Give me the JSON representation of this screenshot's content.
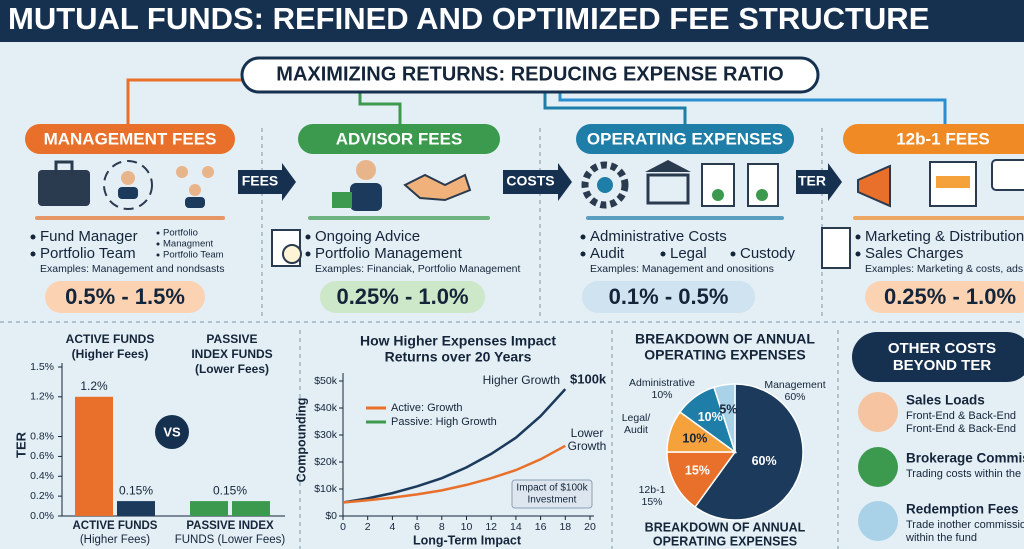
{
  "header": {
    "title": "MUTUAL FUNDS: REFINED AND OPTIMIZED FEE STRUCTURE",
    "subtitle": "MAXIMIZING RETURNS: REDUCING EXPENSE RATIO"
  },
  "fee_sections": [
    {
      "title": "MANAGEMENT FEES",
      "bullets": [
        "Fund Manager",
        "Portfolio Team"
      ],
      "notes": [
        "Portfolio",
        "Managment",
        "Portfolio Team"
      ],
      "examples": "Examples: Management and nondsasts",
      "range": "0.5% - 1.5%"
    },
    {
      "title": "ADVISOR FEES",
      "bullets": [
        "Ongoing Advice",
        "Portfolio Management"
      ],
      "examples": "Examples: Financiak, Portfolio Management",
      "range": "0.25% - 1.0%"
    },
    {
      "title": "OPERATING EXPENSES",
      "bullets": [
        "Administrative Costs",
        "Audit",
        "Legal",
        "Custody"
      ],
      "examples": "Examples: Management and onositions",
      "range": "0.1% - 0.5%"
    },
    {
      "title": "12b-1 FEES",
      "bullets": [
        "Marketing & Distribution",
        "Sales Charges"
      ],
      "examples": "Examples: Marketing & costs, ads, brokers",
      "range": "0.25% - 1.0%"
    }
  ],
  "flow_labels": [
    "FEES",
    "COSTS",
    "TER"
  ],
  "other_costs": {
    "title": [
      "OTHER COSTS",
      "BEYOND TER"
    ],
    "items": [
      {
        "name": "Sales Loads",
        "lines": [
          "Front-End & Back-End",
          "Front-End & Back-End"
        ]
      },
      {
        "name": "Brokerage Commissions",
        "lines": [
          "Trading costs within the fund"
        ]
      },
      {
        "name": "Redemption Fees",
        "lines": [
          "Trade inother commissions",
          "within the fund"
        ]
      }
    ]
  },
  "chart_data": [
    {
      "type": "bar",
      "headers": [
        [
          "ACTIVE FUNDS",
          "(Higher Fees)"
        ],
        [
          "PASSIVE",
          "INDEX FUNDS",
          "(Lower Fees)"
        ]
      ],
      "categories": [
        [
          "ACTIVE FUNDS",
          "(Higher Fees)"
        ],
        [
          "PASSIVE INDEX",
          "FUNDS (Lower Fees)"
        ]
      ],
      "ylabel": "TER",
      "separator": "VS",
      "series": [
        {
          "colors": [
            "#e8702a",
            "#3c9a4e"
          ],
          "values": [
            1.2,
            0.15
          ],
          "value_labels": [
            "1.2%",
            "0.15%"
          ]
        },
        {
          "colors": [
            "#1b3a5c",
            "#3c9a4e"
          ],
          "values": [
            0.15,
            0.15
          ],
          "value_labels": [
            "0.15%",
            null
          ]
        }
      ],
      "ylim": [
        0,
        1.5
      ],
      "yticks": [
        {
          "value": 0,
          "label": "0.0%"
        },
        {
          "value": 0.2,
          "label": "0.2%"
        },
        {
          "value": 0.4,
          "label": "0.4%"
        },
        {
          "value": 0.6,
          "label": "0.6%"
        },
        {
          "value": 0.8,
          "label": "0.8%"
        },
        {
          "value": 1.2,
          "label": "1.2%"
        },
        {
          "value": 1.5,
          "label": "1.5%"
        }
      ]
    },
    {
      "type": "line",
      "title": [
        "How Higher Expenses Impact",
        "Returns over 20 Years"
      ],
      "xlabel": "Long-Term Impact",
      "ylabel": "Compounding",
      "x": [
        0,
        2,
        4,
        6,
        8,
        10,
        12,
        14,
        16,
        18
      ],
      "series": [
        {
          "color": "#1b3a5c",
          "values": [
            5000,
            6500,
            8500,
            11000,
            14000,
            18000,
            23000,
            29000,
            37000,
            47000
          ]
        },
        {
          "name": "Active: Growth",
          "color": "#e8702a",
          "values": [
            5000,
            5800,
            6800,
            8000,
            9500,
            11500,
            14000,
            17000,
            21000,
            26000
          ]
        },
        {
          "name": "Passive: High Growth",
          "color": "#3c9a4e",
          "values": [
            null,
            null,
            null,
            null,
            null,
            null,
            null,
            null,
            null,
            null
          ]
        }
      ],
      "annotations": {
        "high": "Higher Growth",
        "high_value": "$100k",
        "low": [
          "Lower",
          "Growth"
        ],
        "note": [
          "Impact of $100k",
          "Investment"
        ]
      },
      "xlim": [
        0,
        20
      ],
      "xticks": [
        0,
        2,
        4,
        6,
        8,
        10,
        12,
        14,
        16,
        18,
        20
      ],
      "ylim": [
        0,
        50000
      ],
      "yticks": [
        {
          "value": 0,
          "label": "$0"
        },
        {
          "value": 10000,
          "label": "$10k"
        },
        {
          "value": 20000,
          "label": "$20k"
        },
        {
          "value": 30000,
          "label": "$30k"
        },
        {
          "value": 40000,
          "label": "$40k"
        },
        {
          "value": 50000,
          "label": "$50k"
        }
      ]
    },
    {
      "type": "pie",
      "title": [
        "BREAKDOWN OF ANNUAL",
        "OPERATING EXPENSES"
      ],
      "footer": [
        "BREAKDOWN OF ANNUAL",
        "OPERATING EXPENSES"
      ],
      "labels": [
        [
          "Management",
          "60%"
        ],
        [
          "12b-1",
          "15%"
        ],
        [
          "Legal/",
          "Audit"
        ],
        [
          "Administrative",
          "10%"
        ],
        null
      ],
      "values": [
        60,
        15,
        10,
        10,
        5
      ],
      "value_labels": [
        "60%",
        "15%",
        "10%",
        "10%",
        "5%"
      ],
      "colors": [
        "#1b3a5c",
        "#e8702a",
        "#f5a23c",
        "#1f7ea8",
        "#a9d2e8"
      ]
    }
  ]
}
